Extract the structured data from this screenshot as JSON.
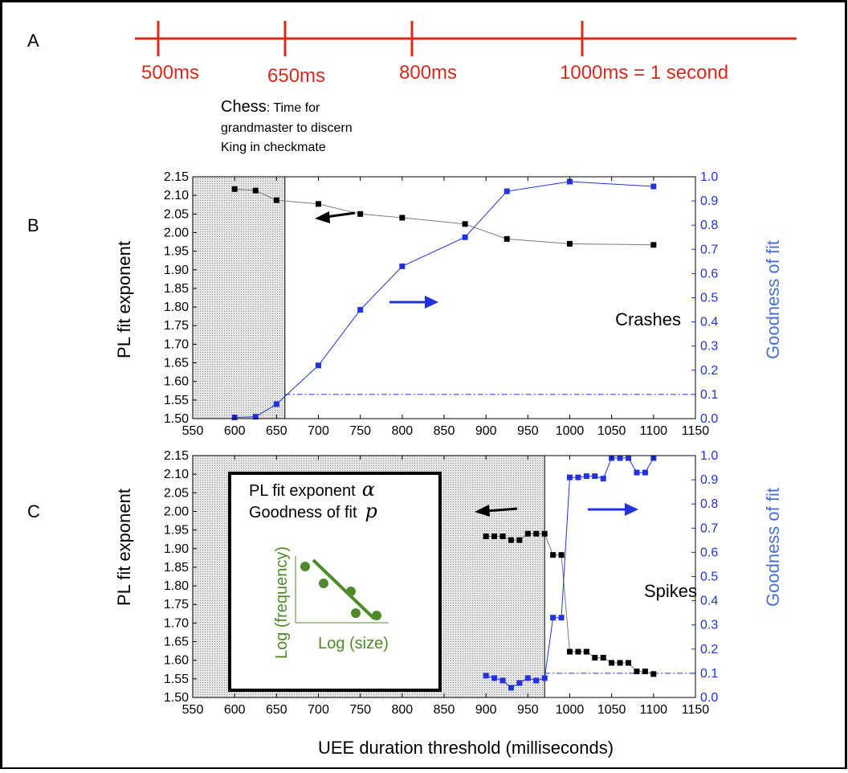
{
  "panel_labels": {
    "a": "A",
    "b": "B",
    "c": "C"
  },
  "colors": {
    "timeline": "#d42b1e",
    "left_series": "#000000",
    "right_series": "#2233dd",
    "right_axis_label": "#4a6fd8",
    "inset_green": "#4f8a2a",
    "shade": "#d9d9d9"
  },
  "timeline": {
    "marks": [
      {
        "label": "500ms"
      },
      {
        "label": "650ms"
      },
      {
        "label": "800ms"
      },
      {
        "label": "1000ms = 1 second"
      }
    ],
    "chess_lead": "Chess",
    "chess_rest": ": Time for",
    "chess_line2": "grandmaster to discern",
    "chess_line3": "King in checkmate"
  },
  "chart_data": [
    {
      "type": "line",
      "panel": "B",
      "annotation": "Crashes",
      "xlabel": "",
      "ylabel": "PL fit exponent",
      "y2label": "Goodness of fit",
      "xlim": [
        550,
        1150
      ],
      "ylim": [
        1.5,
        2.15
      ],
      "y2lim": [
        0.0,
        1.0
      ],
      "xticks": [
        "550",
        "600",
        "650",
        "700",
        "750",
        "800",
        "850",
        "900",
        "950",
        "1000",
        "1050",
        "1100",
        "1150"
      ],
      "yticks": [
        "1.50",
        "1.55",
        "1.60",
        "1.65",
        "1.70",
        "1.75",
        "1.80",
        "1.85",
        "1.90",
        "1.95",
        "2.00",
        "2.05",
        "2.10",
        "2.15"
      ],
      "y2ticks": [
        "0.0",
        "0.1",
        "0.2",
        "0.3",
        "0.4",
        "0.5",
        "0.6",
        "0.7",
        "0.8",
        "0.9",
        "1.0"
      ],
      "shaded_x_max": 660,
      "reference_line": {
        "axis": "y2",
        "value": 0.1
      },
      "series": [
        {
          "axis": "left",
          "x": [
            600,
            625,
            650,
            700,
            750,
            800,
            875,
            925,
            1000,
            1100
          ],
          "values": [
            2.117,
            2.113,
            2.087,
            2.077,
            2.05,
            2.04,
            2.023,
            1.983,
            1.97,
            1.967
          ]
        },
        {
          "axis": "right",
          "x": [
            600,
            625,
            650,
            700,
            750,
            800,
            875,
            925,
            1000,
            1100
          ],
          "values": [
            0.005,
            0.008,
            0.06,
            0.22,
            0.45,
            0.63,
            0.75,
            0.94,
            0.98,
            0.96
          ]
        }
      ]
    },
    {
      "type": "line",
      "panel": "C",
      "annotation": "Spikes",
      "xlabel": "UEE duration threshold (milliseconds)",
      "ylabel": "PL fit exponent",
      "y2label": "Goodness of fit",
      "xlim": [
        550,
        1150
      ],
      "ylim": [
        1.5,
        2.15
      ],
      "y2lim": [
        0.0,
        1.0
      ],
      "xticks": [
        "550",
        "600",
        "650",
        "700",
        "750",
        "800",
        "850",
        "900",
        "950",
        "1000",
        "1050",
        "1100",
        "1150"
      ],
      "yticks": [
        "1.50",
        "1.55",
        "1.60",
        "1.65",
        "1.70",
        "1.75",
        "1.80",
        "1.85",
        "1.90",
        "1.95",
        "2.00",
        "2.05",
        "2.10",
        "2.15"
      ],
      "y2ticks": [
        "0.0",
        "0.1",
        "0.2",
        "0.3",
        "0.4",
        "0.5",
        "0.6",
        "0.7",
        "0.8",
        "0.9",
        "1.0"
      ],
      "shaded_x_max": 970,
      "reference_line": {
        "axis": "y2",
        "value": 0.1
      },
      "series": [
        {
          "axis": "left",
          "x": [
            900,
            910,
            920,
            930,
            940,
            950,
            960,
            970,
            980,
            990,
            1000,
            1010,
            1020,
            1030,
            1040,
            1050,
            1060,
            1070,
            1080,
            1090,
            1100
          ],
          "values": [
            1.933,
            1.933,
            1.933,
            1.923,
            1.923,
            1.94,
            1.94,
            1.94,
            1.883,
            1.883,
            1.623,
            1.623,
            1.623,
            1.607,
            1.607,
            1.593,
            1.593,
            1.593,
            1.57,
            1.57,
            1.563
          ]
        },
        {
          "axis": "right",
          "x": [
            900,
            910,
            920,
            930,
            940,
            950,
            960,
            970,
            980,
            990,
            1000,
            1010,
            1020,
            1030,
            1040,
            1050,
            1060,
            1070,
            1080,
            1090,
            1100
          ],
          "values": [
            0.09,
            0.08,
            0.07,
            0.04,
            0.06,
            0.08,
            0.07,
            0.08,
            0.33,
            0.33,
            0.91,
            0.91,
            0.915,
            0.915,
            0.905,
            0.99,
            0.99,
            0.99,
            0.93,
            0.93,
            0.99
          ]
        }
      ]
    }
  ],
  "arrows": {
    "b_left": {
      "direction": "left"
    },
    "b_right": {
      "direction": "right"
    },
    "c_left": {
      "direction": "left"
    },
    "c_right": {
      "direction": "right"
    }
  },
  "inset": {
    "line1_text": "PL fit exponent",
    "line1_symbol": "α",
    "line2_text": "Goodness of fit",
    "line2_symbol": "p",
    "xlabel": "Log (size)",
    "ylabel": "Log (frequency)"
  }
}
